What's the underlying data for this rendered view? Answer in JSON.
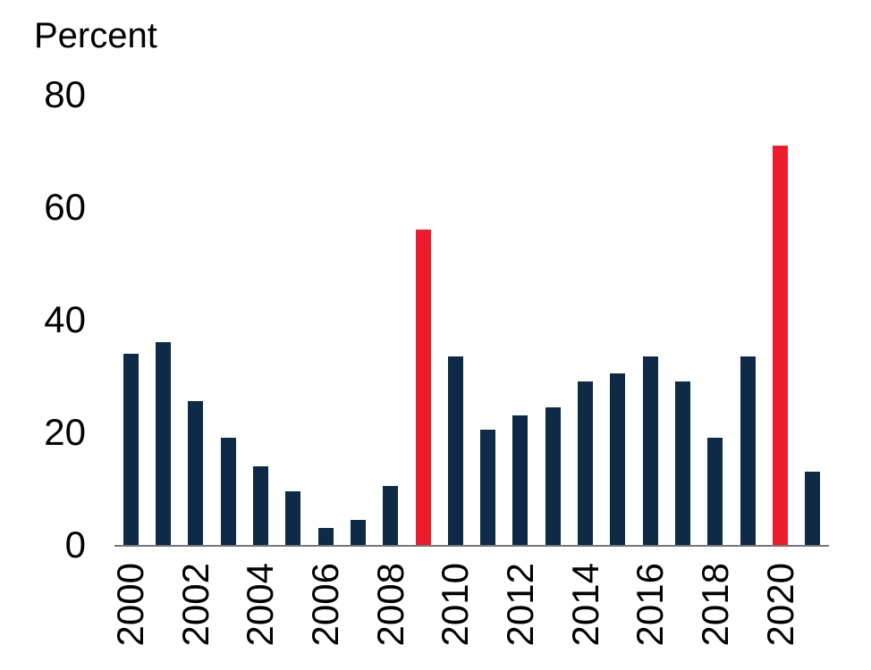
{
  "chart_data": {
    "type": "bar",
    "ylabel": "Percent",
    "categories": [
      "2000",
      "2001",
      "2002",
      "2003",
      "2004",
      "2005",
      "2006",
      "2007",
      "2008",
      "2009",
      "2010",
      "2011",
      "2012",
      "2013",
      "2014",
      "2015",
      "2016",
      "2017",
      "2018",
      "2019",
      "2020",
      "2021"
    ],
    "values": [
      34,
      36,
      25.5,
      19,
      14,
      9.5,
      3,
      4.5,
      10.5,
      56,
      33.5,
      20.5,
      23,
      24.5,
      29,
      30.5,
      33.5,
      29,
      19,
      33.5,
      71,
      13
    ],
    "ylim": [
      0,
      80
    ],
    "yticks": [
      80,
      60,
      40,
      20,
      0
    ],
    "xtick_labels": [
      "2000",
      "2002",
      "2004",
      "2006",
      "2008",
      "2010",
      "2012",
      "2014",
      "2016",
      "2018",
      "2020"
    ],
    "bar_color": "#0e2a47",
    "highlight_color": "#ed1c2d",
    "highlight_years": [
      "2009",
      "2020"
    ],
    "axis_line_color": "#767676",
    "grid": false,
    "legend": "none"
  }
}
